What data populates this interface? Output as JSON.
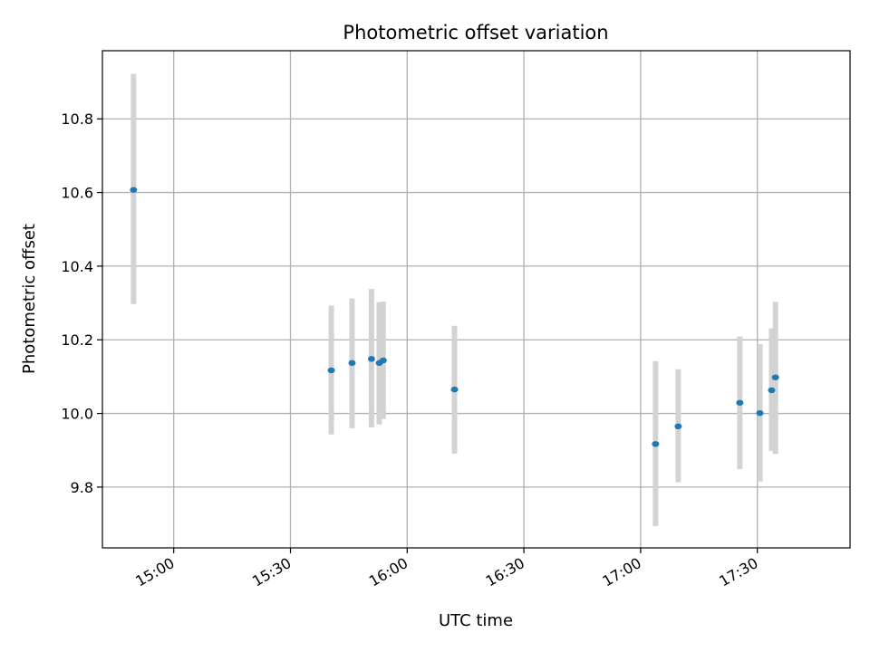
{
  "chart_data": {
    "type": "scatter",
    "title": "Photometric offset variation",
    "xlabel": "UTC time",
    "ylabel": "Photometric offset",
    "x_axis": "time",
    "xlim": [
      "14:41:40",
      "17:53:50"
    ],
    "ylim": [
      9.635,
      10.985
    ],
    "x_ticks": [
      "15:00",
      "15:30",
      "16:00",
      "16:30",
      "17:00",
      "17:30"
    ],
    "y_ticks": [
      9.8,
      10.0,
      10.2,
      10.4,
      10.6,
      10.8
    ],
    "y_tick_labels": [
      "9.8",
      "10.0",
      "10.2",
      "10.4",
      "10.6",
      "10.8"
    ],
    "grid": true,
    "colors": {
      "points": "#1f77b4",
      "error_bars": "#d3d3d3",
      "grid": "#b0b0b0"
    },
    "series": [
      {
        "x": [
          "14:49:40",
          "15:40:30",
          "15:45:50",
          "15:50:50",
          "15:52:50",
          "15:53:50",
          "16:12:10",
          "17:03:50",
          "17:09:40",
          "17:25:30",
          "17:30:40",
          "17:33:40",
          "17:34:40"
        ],
        "y": [
          10.607,
          10.117,
          10.137,
          10.148,
          10.137,
          10.144,
          10.065,
          9.917,
          9.965,
          10.029,
          10.001,
          10.063,
          10.098
        ],
        "err_low": [
          10.297,
          9.943,
          9.96,
          9.962,
          9.97,
          9.985,
          9.891,
          9.694,
          9.813,
          9.849,
          9.815,
          9.898,
          9.89
        ],
        "err_high": [
          10.922,
          10.293,
          10.312,
          10.338,
          10.302,
          10.304,
          10.238,
          10.142,
          10.12,
          10.209,
          10.188,
          10.231,
          10.303
        ]
      }
    ]
  }
}
